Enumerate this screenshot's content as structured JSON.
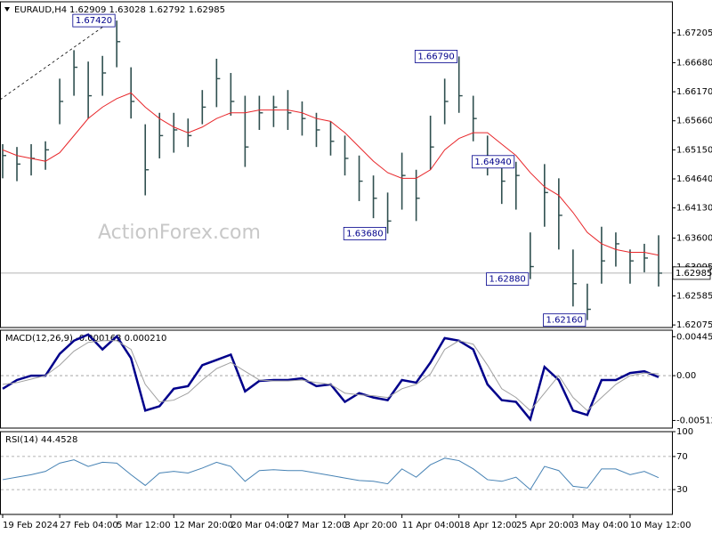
{
  "chart_data": [
    {
      "type": "ohlc",
      "title": "EURAUD,H4",
      "ohlc": "1.62909 1.63028 1.62792 1.62985",
      "watermark": "ActionForex.com",
      "categories": [
        "19 Feb 2024",
        null,
        null,
        null,
        "27 Feb 04:00",
        null,
        null,
        null,
        "5 Mar 12:00",
        null,
        null,
        null,
        "12 Mar 20:00",
        null,
        null,
        null,
        "20 Mar 04:00",
        null,
        null,
        null,
        "27 Mar 12:00",
        null,
        null,
        null,
        "3 Apr 20:00",
        null,
        null,
        null,
        "11 Apr 04:00",
        null,
        null,
        null,
        "18 Apr 12:00",
        null,
        null,
        null,
        "25 Apr 20:00",
        null,
        null,
        null,
        "3 May 04:00",
        null,
        null,
        null,
        "10 May 12:00",
        null,
        null
      ],
      "high": [
        1.6525,
        1.652,
        1.6525,
        1.653,
        1.664,
        1.669,
        1.667,
        1.668,
        1.6742,
        1.666,
        1.656,
        1.658,
        1.658,
        1.657,
        1.662,
        1.6675,
        1.665,
        1.661,
        1.661,
        1.661,
        1.662,
        1.66,
        1.658,
        1.6565,
        1.654,
        1.6505,
        1.647,
        1.644,
        1.651,
        1.648,
        1.6575,
        1.664,
        1.6679,
        1.661,
        1.654,
        1.65,
        1.6494,
        1.637,
        1.649,
        1.6465,
        1.634,
        1.628,
        1.638,
        1.637,
        1.634,
        1.635,
        1.6365
      ],
      "low": [
        1.6465,
        1.646,
        1.647,
        1.648,
        1.656,
        1.661,
        1.657,
        1.661,
        1.666,
        1.657,
        1.6435,
        1.65,
        1.651,
        1.652,
        1.656,
        1.659,
        1.6575,
        1.6485,
        1.655,
        1.6555,
        1.655,
        1.654,
        1.652,
        1.6505,
        1.647,
        1.6425,
        1.6395,
        1.6368,
        1.641,
        1.639,
        1.648,
        1.656,
        1.658,
        1.653,
        1.647,
        1.642,
        1.641,
        1.6288,
        1.638,
        1.634,
        1.624,
        1.6216,
        1.628,
        1.631,
        1.628,
        1.63,
        1.6275
      ],
      "close": [
        1.6505,
        1.649,
        1.65,
        1.6515,
        1.66,
        1.666,
        1.661,
        1.665,
        1.6705,
        1.66,
        1.648,
        1.654,
        1.655,
        1.654,
        1.659,
        1.664,
        1.66,
        1.652,
        1.658,
        1.659,
        1.658,
        1.657,
        1.655,
        1.653,
        1.65,
        1.646,
        1.643,
        1.639,
        1.647,
        1.643,
        1.652,
        1.66,
        1.661,
        1.657,
        1.65,
        1.646,
        1.647,
        1.631,
        1.644,
        1.64,
        1.628,
        1.6235,
        1.632,
        1.635,
        1.632,
        1.6325,
        1.62985
      ],
      "color": "#2f4f4f",
      "ma": {
        "color": "#e8262a",
        "values": [
          1.6515,
          1.6505,
          1.65,
          1.6495,
          1.651,
          1.654,
          1.657,
          1.659,
          1.6605,
          1.6615,
          1.659,
          1.657,
          1.6555,
          1.6545,
          1.6555,
          1.657,
          1.658,
          1.658,
          1.6585,
          1.6585,
          1.6585,
          1.658,
          1.657,
          1.6565,
          1.6545,
          1.652,
          1.6495,
          1.6475,
          1.6465,
          1.6465,
          1.648,
          1.6515,
          1.6535,
          1.6545,
          1.6545,
          1.6525,
          1.6505,
          1.6475,
          1.645,
          1.6435,
          1.6405,
          1.637,
          1.635,
          1.634,
          1.6335,
          1.6335,
          1.633
        ]
      },
      "last": 1.62985,
      "annotations": [
        {
          "value": 1.6742,
          "label": "1.67420"
        },
        {
          "value": 1.6679,
          "label": "1.66790"
        },
        {
          "value": 1.6494,
          "label": "1.64940"
        },
        {
          "value": 1.6368,
          "label": "1.63680"
        },
        {
          "value": 1.6288,
          "label": "1.62880"
        },
        {
          "value": 1.6216,
          "label": "1.62160"
        }
      ],
      "ylim": [
        1.6203,
        1.6775
      ],
      "yticks": [
        1.67205,
        {
          "value": 1.6668,
          "label": "1.66680"
        },
        {
          "value": 1.6617,
          "label": "1.66170"
        },
        {
          "value": 1.6566,
          "label": "1.65660"
        },
        {
          "value": 1.6515,
          "label": "1.65150"
        },
        {
          "value": 1.6464,
          "label": "1.64640"
        },
        {
          "value": 1.6413,
          "label": "1.64130"
        },
        {
          "value": 1.636,
          "label": "1.63600"
        },
        1.63095,
        1.62585,
        1.62075
      ]
    },
    {
      "type": "line",
      "title": "MACD(12,26,9) -0.000163 0.000210",
      "series": [
        {
          "color": "#00008b",
          "line_width": 2.5,
          "values": [
            -0.0015,
            -0.0005,
            0,
            0,
            0.0025,
            0.004,
            0.0047,
            0.003,
            0.0045,
            0.002,
            -0.004,
            -0.0035,
            -0.0015,
            -0.0012,
            0.0012,
            0.0018,
            0.0024,
            -0.0018,
            -0.0006,
            -0.0005,
            -0.0005,
            -0.0003,
            -0.0012,
            -0.001,
            -0.003,
            -0.002,
            -0.0025,
            -0.0028,
            -0.0005,
            -0.0008,
            0.0015,
            0.0043,
            0.004,
            0.003,
            -0.001,
            -0.0028,
            -0.003,
            -0.005,
            0.001,
            -0.0005,
            -0.004,
            -0.0045,
            -0.0005,
            -0.0005,
            0.0003,
            0.0005,
            -0.000163
          ]
        },
        {
          "color": "#a0a0a0",
          "line_width": 1,
          "values": [
            -0.001,
            -0.0008,
            -0.0004,
            0,
            0.0012,
            0.0028,
            0.0038,
            0.004,
            0.004,
            0.003,
            -0.001,
            -0.003,
            -0.0028,
            -0.002,
            -0.0005,
            0.0008,
            0.0015,
            0.0005,
            -0.0005,
            -0.0006,
            -0.0006,
            -0.0005,
            -0.0008,
            -0.001,
            -0.002,
            -0.0022,
            -0.0023,
            -0.0025,
            -0.0015,
            -0.001,
            0.0002,
            0.003,
            0.004,
            0.0036,
            0.0012,
            -0.0015,
            -0.0025,
            -0.004,
            -0.002,
            0,
            -0.0025,
            -0.004,
            -0.0025,
            -0.001,
            0,
            0.0003,
            0.00021
          ]
        }
      ],
      "ylim": [
        -0.006,
        0.0052
      ],
      "yticks": [
        0.004456,
        {
          "value": 0,
          "label": "0.00"
        },
        -0.005128
      ],
      "levels": [
        0
      ]
    },
    {
      "type": "line",
      "title": "RSI(14) 44.4528",
      "series": [
        {
          "color": "#4682b4",
          "line_width": 1,
          "values": [
            42,
            45,
            48,
            52,
            62,
            66,
            58,
            63,
            62,
            48,
            35,
            50,
            52,
            50,
            56,
            63,
            58,
            40,
            53,
            54,
            53,
            53,
            50,
            47,
            44,
            41,
            40,
            37,
            55,
            45,
            60,
            68,
            65,
            55,
            42,
            40,
            45,
            30,
            58,
            53,
            34,
            32,
            55,
            55,
            48,
            52,
            44.4528
          ]
        }
      ],
      "ylim": [
        0,
        100
      ],
      "yticks": [
        100,
        70,
        30
      ],
      "levels": [
        70,
        30
      ]
    }
  ]
}
